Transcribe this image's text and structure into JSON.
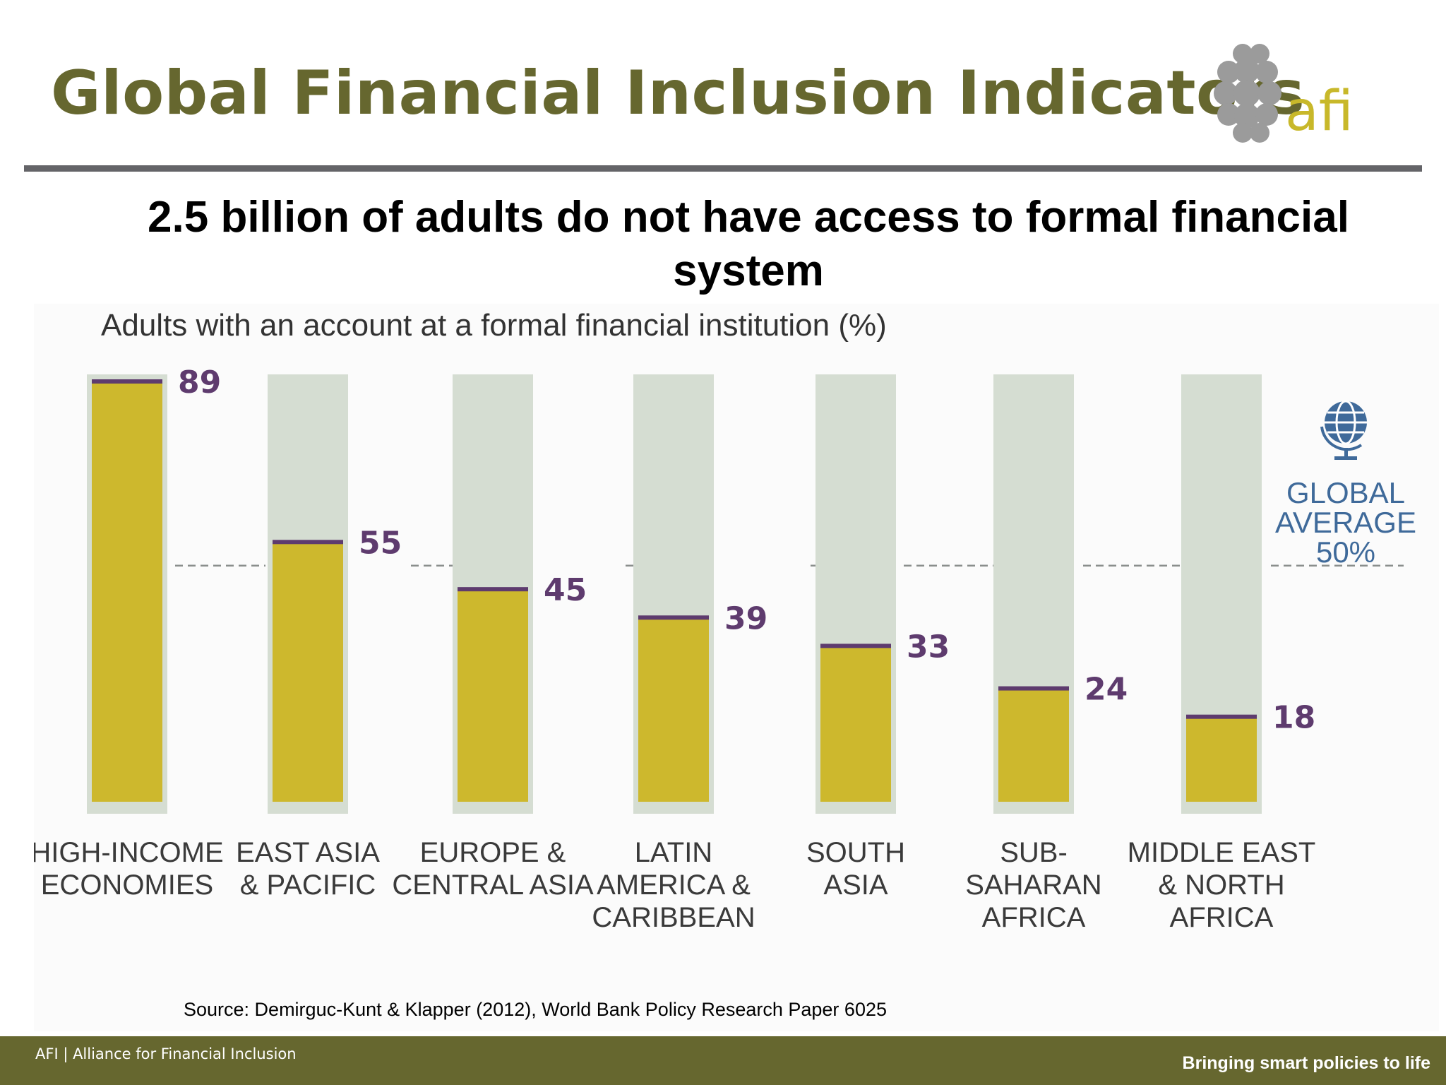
{
  "slide": {
    "title": "Global Financial Inclusion Indicators",
    "headline": "2.5 billion of adults do not have access to formal financial system",
    "source": "Source: Demirguc-Kunt & Klapper (2012), World Bank Policy Research Paper 6025"
  },
  "logo": {
    "text": "afi",
    "icon": "afi-dots-logo"
  },
  "footer": {
    "left": "AFI  |  Alliance for Financial Inclusion",
    "right": "Bringing smart policies to life"
  },
  "colors": {
    "title": "#66672f",
    "bar_fill": "#cdb82d",
    "bar_track": "#d5ddd2",
    "marker": "#5e3b6e",
    "value_label": "#5e3b6e",
    "average_line": "#8a8e8c",
    "average_text": "#3f6a9a",
    "footer": "#66672f"
  },
  "chart_data": {
    "type": "bar",
    "title": "Adults with an account at a formal financial institution (%)",
    "categories": [
      [
        "HIGH-INCOME",
        "ECONOMIES"
      ],
      [
        "EAST ASIA",
        "& PACIFIC"
      ],
      [
        "EUROPE &",
        "CENTRAL ASIA"
      ],
      [
        "LATIN",
        "AMERICA &",
        "CARIBBEAN"
      ],
      [
        "SOUTH",
        "ASIA"
      ],
      [
        "SUB-",
        "SAHARAN",
        "AFRICA"
      ],
      [
        "MIDDLE EAST",
        "& NORTH",
        "AFRICA"
      ]
    ],
    "values": [
      89,
      55,
      45,
      39,
      33,
      24,
      18
    ],
    "value_labels": [
      "89",
      "55",
      "45",
      "39",
      "33",
      "24",
      "18"
    ],
    "ylim": [
      0,
      100
    ],
    "reference_line": {
      "value": 50,
      "label_lines": [
        "GLOBAL",
        "AVERAGE",
        "50%"
      ],
      "icon": "globe-icon"
    },
    "grid": false,
    "legend": "none"
  }
}
